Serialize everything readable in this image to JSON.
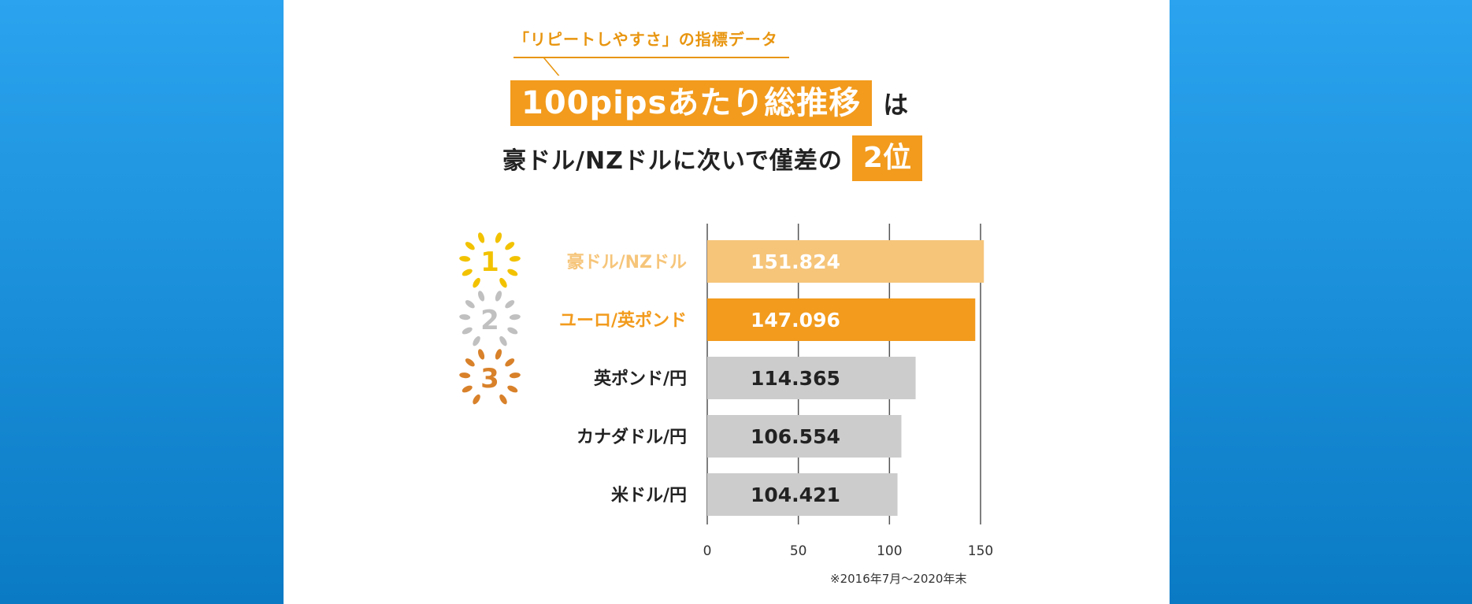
{
  "header": {
    "kicker": "「リピートしやすさ」の指標データ",
    "headline_highlight": "100pipsあたり総推移",
    "headline_tail": "は",
    "subline_text": "豪ドル/NZドルに次いで僅差の",
    "subline_rank": "2位"
  },
  "footnote": "※2016年7月～2020年末",
  "colors": {
    "accent": "#f29b1d",
    "first_bar": "#f6c57a",
    "second_bar": "#f29b1d",
    "other_bar": "#cccccc",
    "gold": "#f2c200",
    "silver": "#c0c0c0",
    "bronze": "#d8812a"
  },
  "chart_data": {
    "type": "bar",
    "orientation": "horizontal",
    "categories": [
      "豪ドル/NZドル",
      "ユーロ/英ポンド",
      "英ポンド/円",
      "カナダドル/円",
      "米ドル/円"
    ],
    "values": [
      151.824,
      147.096,
      114.365,
      106.554,
      104.421
    ],
    "value_labels": [
      "151.824",
      "147.096",
      "114.365",
      "106.554",
      "104.421"
    ],
    "ranks": [
      "1",
      "2",
      "3",
      "",
      ""
    ],
    "xlim": [
      0,
      150
    ],
    "xticks": [
      0,
      50,
      100,
      150
    ],
    "grid": true
  }
}
